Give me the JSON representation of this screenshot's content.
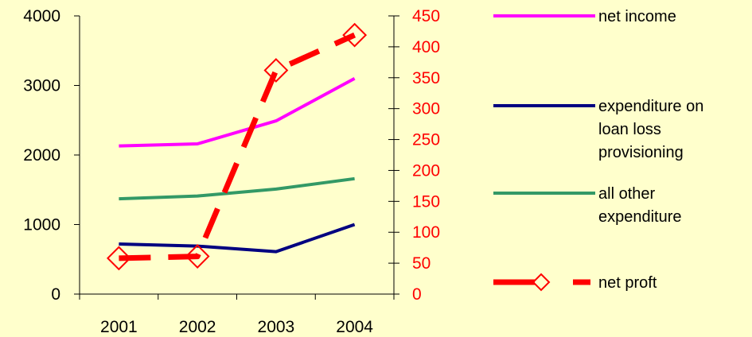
{
  "chart_data": {
    "type": "line",
    "categories": [
      "2001",
      "2002",
      "2003",
      "2004"
    ],
    "left_axis": {
      "ylim": [
        0,
        4000
      ],
      "ticks": [
        "0",
        "1000",
        "2000",
        "3000",
        "4000"
      ],
      "color": "#000000"
    },
    "right_axis": {
      "ylim": [
        0,
        450
      ],
      "ticks": [
        "0",
        "50",
        "100",
        "150",
        "200",
        "250",
        "300",
        "350",
        "400",
        "450"
      ],
      "color": "#FF0000"
    },
    "series": [
      {
        "name": "net income",
        "axis": "left",
        "color": "#FF00FF",
        "style": "solid",
        "values": [
          2130,
          2160,
          2490,
          3100
        ]
      },
      {
        "name": "expenditure on loan loss provisioning",
        "axis": "left",
        "color": "#000080",
        "style": "solid",
        "values": [
          720,
          690,
          610,
          1000
        ]
      },
      {
        "name": "all other expenditure",
        "axis": "left",
        "color": "#339966",
        "style": "solid",
        "values": [
          1370,
          1410,
          1510,
          1660
        ]
      },
      {
        "name": "net proft",
        "axis": "right",
        "color": "#FF0000",
        "style": "dashed",
        "marker": "diamond",
        "values": [
          58,
          61,
          362,
          419
        ]
      }
    ],
    "legend": {
      "position": "right",
      "labels": [
        [
          "net income"
        ],
        [
          "expenditure on",
          "loan loss",
          "provisioning"
        ],
        [
          "all other",
          "expenditure"
        ],
        [
          "net proft"
        ]
      ]
    },
    "title": "",
    "xlabel": "",
    "ylabel": ""
  }
}
